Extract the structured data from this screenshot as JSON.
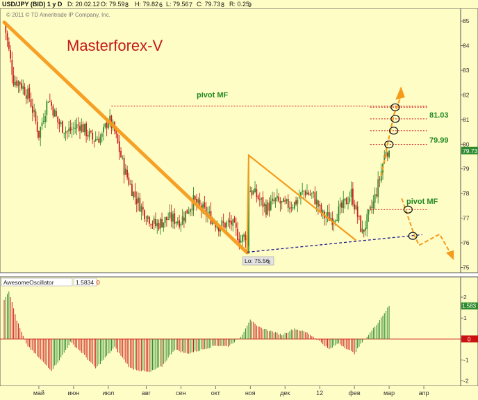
{
  "header": {
    "symbol": "USD/JPY (BID) 1 y D",
    "date": "D: 20.02.12",
    "open": "O: 79.59",
    "open_sub": "8",
    "high": "H: 79.82",
    "high_sub": "6",
    "low": "L: 79.56",
    "low_sub": "7",
    "close": "C: 79.73",
    "close_sub": "8",
    "range": "R: 0.25",
    "range_sub": "9",
    "copyright": "© 2011 © TD Ameritrade IP Company, Inc."
  },
  "watermark": "Masterforex-V",
  "annotations": {
    "pivot_top": "pivot MF",
    "level_1": "81.03",
    "level_2": "79.99",
    "pivot_right": "pivot MF",
    "low_label": "Lo: 75.56",
    "low_label_sub": "3",
    "last_price": "79.73"
  },
  "oscillator": {
    "name": "AwesomeOscillator",
    "value": "1.5834",
    "zero": "0",
    "last_value": "1.583"
  },
  "colors": {
    "background": "#fffdc6",
    "up_candle": "#2e8b2e",
    "down_candle": "#cc1f1f",
    "trend": "#f59b1c",
    "pivot_line": "#cc1111",
    "support": "#1a1a8c",
    "annotation_text": "#228822",
    "watermark": "#c41a1a"
  },
  "chart_data": [
    {
      "type": "candlestick",
      "title": "USD/JPY (BID) 1 y D",
      "x_labels": [
        "май",
        "июн",
        "июл",
        "авг",
        "сен",
        "окт",
        "ноя",
        "дек",
        "12",
        "фев",
        "мар",
        "апр"
      ],
      "y_ticks": [
        75,
        76,
        77,
        78,
        79,
        80,
        81,
        82,
        83,
        84,
        85
      ],
      "ylim": [
        74.9,
        85.4
      ],
      "grid": false,
      "anchors": [
        {
          "i": 0,
          "p": 84.95
        },
        {
          "i": 6,
          "p": 82.6
        },
        {
          "i": 10,
          "p": 82.5
        },
        {
          "i": 16,
          "p": 81.9
        },
        {
          "i": 22,
          "p": 80.4
        },
        {
          "i": 28,
          "p": 81.9
        },
        {
          "i": 34,
          "p": 80.9
        },
        {
          "i": 40,
          "p": 80.5
        },
        {
          "i": 48,
          "p": 80.8
        },
        {
          "i": 56,
          "p": 80.2
        },
        {
          "i": 62,
          "p": 80.3
        },
        {
          "i": 66,
          "p": 81.05
        },
        {
          "i": 70,
          "p": 80.5
        },
        {
          "i": 76,
          "p": 79.0
        },
        {
          "i": 82,
          "p": 78.0
        },
        {
          "i": 88,
          "p": 77.3
        },
        {
          "i": 96,
          "p": 76.7
        },
        {
          "i": 104,
          "p": 77.0
        },
        {
          "i": 112,
          "p": 76.9
        },
        {
          "i": 120,
          "p": 77.7
        },
        {
          "i": 128,
          "p": 77.2
        },
        {
          "i": 136,
          "p": 76.7
        },
        {
          "i": 144,
          "p": 76.8
        },
        {
          "i": 150,
          "p": 76.1
        },
        {
          "i": 154,
          "p": 76.4
        },
        {
          "i": 155,
          "p": 78.2
        },
        {
          "i": 160,
          "p": 77.9
        },
        {
          "i": 166,
          "p": 77.4
        },
        {
          "i": 172,
          "p": 77.7
        },
        {
          "i": 178,
          "p": 77.5
        },
        {
          "i": 184,
          "p": 77.6
        },
        {
          "i": 190,
          "p": 78.1
        },
        {
          "i": 196,
          "p": 77.9
        },
        {
          "i": 202,
          "p": 77.1
        },
        {
          "i": 208,
          "p": 77.0
        },
        {
          "i": 214,
          "p": 77.4
        },
        {
          "i": 220,
          "p": 78.0
        },
        {
          "i": 224,
          "p": 77.1
        },
        {
          "i": 227,
          "p": 76.4
        },
        {
          "i": 230,
          "p": 76.9
        },
        {
          "i": 234,
          "p": 77.6
        },
        {
          "i": 238,
          "p": 78.6
        },
        {
          "i": 242,
          "p": 79.8
        },
        {
          "i": 244,
          "p": 79.73
        }
      ],
      "low": 75.56,
      "last": 79.73,
      "pivot_levels": [
        81.5,
        81.03,
        80.55,
        79.99,
        77.35
      ],
      "projection": [
        [
          258,
          77.8
        ],
        [
          270,
          76.1
        ],
        [
          278,
          76.4
        ],
        [
          288,
          75.4
        ]
      ],
      "up_projection": [
        [
          244,
          79.99
        ],
        [
          249,
          81.5
        ],
        [
          251,
          81.9
        ]
      ]
    },
    {
      "type": "bar",
      "title": "AwesomeOscillator",
      "y_ticks": [
        -2,
        -1,
        0,
        1,
        2
      ],
      "ylim": [
        -2.15,
        2.5
      ],
      "anchors": [
        {
          "i": 0,
          "v": 1.9
        },
        {
          "i": 3,
          "v": 2.3
        },
        {
          "i": 8,
          "v": 0.9
        },
        {
          "i": 14,
          "v": -0.25
        },
        {
          "i": 22,
          "v": -0.9
        },
        {
          "i": 30,
          "v": -1.5
        },
        {
          "i": 36,
          "v": -0.9
        },
        {
          "i": 42,
          "v": -0.15
        },
        {
          "i": 50,
          "v": -0.7
        },
        {
          "i": 58,
          "v": -1.4
        },
        {
          "i": 64,
          "v": -0.9
        },
        {
          "i": 70,
          "v": -0.4
        },
        {
          "i": 80,
          "v": -1.4
        },
        {
          "i": 92,
          "v": -1.6
        },
        {
          "i": 100,
          "v": -1.3
        },
        {
          "i": 108,
          "v": -0.5
        },
        {
          "i": 116,
          "v": -0.7
        },
        {
          "i": 126,
          "v": -0.5
        },
        {
          "i": 134,
          "v": -0.3
        },
        {
          "i": 142,
          "v": -0.35
        },
        {
          "i": 150,
          "v": 0.1
        },
        {
          "i": 156,
          "v": 0.95
        },
        {
          "i": 160,
          "v": 0.6
        },
        {
          "i": 168,
          "v": 0.4
        },
        {
          "i": 176,
          "v": 0.2
        },
        {
          "i": 184,
          "v": 0.5
        },
        {
          "i": 192,
          "v": 0.3
        },
        {
          "i": 200,
          "v": -0.1
        },
        {
          "i": 206,
          "v": -0.5
        },
        {
          "i": 212,
          "v": -0.2
        },
        {
          "i": 218,
          "v": -0.5
        },
        {
          "i": 222,
          "v": -0.7
        },
        {
          "i": 226,
          "v": -0.25
        },
        {
          "i": 232,
          "v": 0.3
        },
        {
          "i": 237,
          "v": 0.8
        },
        {
          "i": 244,
          "v": 1.58
        }
      ]
    }
  ]
}
